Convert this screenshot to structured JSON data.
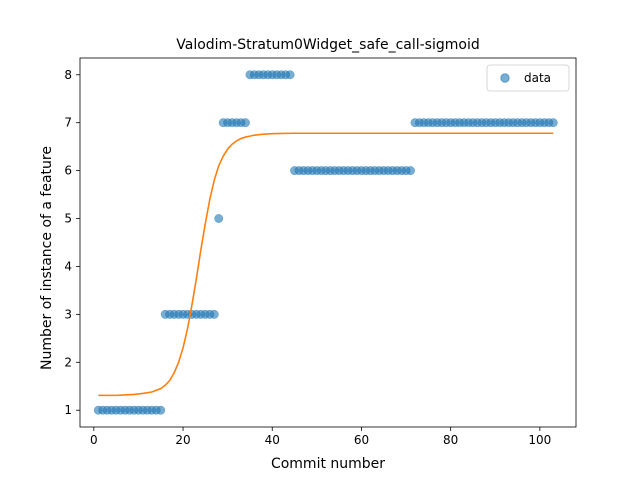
{
  "chart_data": {
    "type": "scatter",
    "title": "Valodim-Stratum0Widget_safe_call-sigmoid",
    "xlabel": "Commit number",
    "ylabel": "Number of instance of a feature",
    "xlim": [
      -3.1,
      108.1
    ],
    "ylim": [
      0.65,
      8.35
    ],
    "xticks": [
      0,
      20,
      40,
      60,
      80,
      100
    ],
    "yticks": [
      1,
      2,
      3,
      4,
      5,
      6,
      7,
      8
    ],
    "grid": false,
    "legend": {
      "placement": "top-right",
      "entries": [
        "data"
      ]
    },
    "colors": {
      "data": "#1f77b4",
      "fit": "#ff7f0e"
    },
    "series": [
      {
        "name": "data",
        "kind": "scatter",
        "x": [
          1,
          2,
          3,
          4,
          5,
          6,
          7,
          8,
          9,
          10,
          11,
          12,
          13,
          14,
          15,
          16,
          17,
          18,
          19,
          20,
          21,
          22,
          23,
          24,
          25,
          26,
          27,
          28,
          29,
          30,
          31,
          32,
          33,
          34,
          35,
          36,
          37,
          38,
          39,
          40,
          41,
          42,
          43,
          44,
          45,
          46,
          47,
          48,
          49,
          50,
          51,
          52,
          53,
          54,
          55,
          56,
          57,
          58,
          59,
          60,
          61,
          62,
          63,
          64,
          65,
          66,
          67,
          68,
          69,
          70,
          71,
          72,
          73,
          74,
          75,
          76,
          77,
          78,
          79,
          80,
          81,
          82,
          83,
          84,
          85,
          86,
          87,
          88,
          89,
          90,
          91,
          92,
          93,
          94,
          95,
          96,
          97,
          98,
          99,
          100,
          101,
          102,
          103
        ],
        "y": [
          1,
          1,
          1,
          1,
          1,
          1,
          1,
          1,
          1,
          1,
          1,
          1,
          1,
          1,
          1,
          3,
          3,
          3,
          3,
          3,
          3,
          3,
          3,
          3,
          3,
          3,
          3,
          5,
          7,
          7,
          7,
          7,
          7,
          7,
          8,
          8,
          8,
          8,
          8,
          8,
          8,
          8,
          8,
          8,
          6,
          6,
          6,
          6,
          6,
          6,
          6,
          6,
          6,
          6,
          6,
          6,
          6,
          6,
          6,
          6,
          6,
          6,
          6,
          6,
          6,
          6,
          6,
          6,
          6,
          6,
          6,
          7,
          7,
          7,
          7,
          7,
          7,
          7,
          7,
          7,
          7,
          7,
          7,
          7,
          7,
          7,
          7,
          7,
          7,
          7,
          7,
          7,
          7,
          7,
          7,
          7,
          7,
          7,
          7,
          7,
          7,
          7,
          7
        ]
      },
      {
        "kind": "line",
        "x": [
          1,
          3,
          5,
          7,
          9,
          11,
          13,
          15,
          16,
          17,
          18,
          19,
          20,
          21,
          22,
          23,
          24,
          25,
          26,
          27,
          28,
          29,
          30,
          31,
          32,
          33,
          34,
          35,
          36,
          38,
          40,
          42,
          45,
          50,
          60,
          70,
          80,
          90,
          103
        ],
        "y": [
          1.31,
          1.31,
          1.31,
          1.32,
          1.33,
          1.35,
          1.38,
          1.45,
          1.52,
          1.62,
          1.78,
          2.0,
          2.3,
          2.7,
          3.2,
          3.75,
          4.35,
          4.9,
          5.4,
          5.8,
          6.1,
          6.3,
          6.45,
          6.55,
          6.62,
          6.67,
          6.7,
          6.72,
          6.74,
          6.76,
          6.77,
          6.775,
          6.78,
          6.78,
          6.78,
          6.78,
          6.78,
          6.78,
          6.78
        ]
      }
    ]
  }
}
